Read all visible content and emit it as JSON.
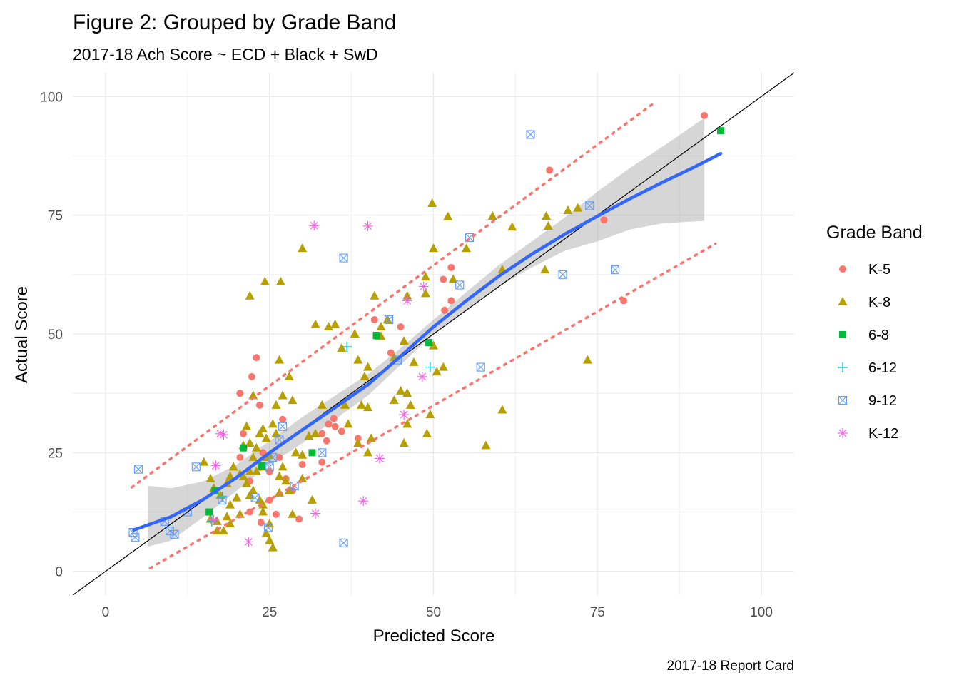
{
  "chart_data": {
    "type": "scatter",
    "title": "Figure 2: Grouped by Grade Band",
    "subtitle": "2017-18 Ach Score ~ ECD + Black + SwD",
    "xlabel": "Predicted Score",
    "ylabel": "Actual Score",
    "caption": "2017-18 Report Card",
    "xlim": [
      -5,
      105
    ],
    "ylim": [
      -5,
      105
    ],
    "x_ticks": [
      "0",
      "25",
      "50",
      "75",
      "100"
    ],
    "y_ticks": [
      "0",
      "25",
      "50",
      "75",
      "100"
    ],
    "grid": true,
    "legend": {
      "title": "Grade Band",
      "placement": "right",
      "entries": [
        {
          "label": "K-5",
          "color": "#F8766D",
          "shape": "circle"
        },
        {
          "label": "K-8",
          "color": "#B79F00",
          "shape": "triangle"
        },
        {
          "label": "6-8",
          "color": "#00BA38",
          "shape": "square"
        },
        {
          "label": "6-12",
          "color": "#00BFC4",
          "shape": "plus"
        },
        {
          "label": "9-12",
          "color": "#619CFF",
          "shape": "square-cross"
        },
        {
          "label": "K-12",
          "color": "#F564E3",
          "shape": "asterisk"
        }
      ]
    },
    "series": [
      {
        "name": "K-5",
        "points": [
          [
            91.3,
            96
          ],
          [
            67.7,
            84.5
          ],
          [
            76,
            74
          ],
          [
            79,
            57
          ],
          [
            51.5,
            61.5
          ],
          [
            52.7,
            64
          ],
          [
            52.7,
            57
          ],
          [
            51.7,
            55
          ],
          [
            41,
            53
          ],
          [
            45,
            51.5
          ],
          [
            41.3,
            49.5
          ],
          [
            20.5,
            37.5
          ],
          [
            22.3,
            41
          ],
          [
            23,
            45
          ],
          [
            23.5,
            35
          ],
          [
            27,
            32
          ],
          [
            34,
            31
          ],
          [
            35,
            30.5
          ],
          [
            36,
            29.5
          ],
          [
            21,
            29
          ],
          [
            33,
            29
          ],
          [
            20.5,
            24
          ],
          [
            24,
            25
          ],
          [
            30,
            22.5
          ],
          [
            33,
            23
          ],
          [
            25,
            21
          ],
          [
            27.5,
            19.5
          ],
          [
            22,
            19
          ],
          [
            28.5,
            17
          ],
          [
            25,
            15
          ],
          [
            22,
            12.5
          ],
          [
            26,
            12
          ],
          [
            23.7,
            10.3
          ],
          [
            29.5,
            11
          ],
          [
            33.7,
            27.5
          ],
          [
            38.5,
            28
          ],
          [
            34.8,
            32.2
          ],
          [
            26.5,
            24
          ],
          [
            43.5,
            46
          ]
        ]
      },
      {
        "name": "K-8",
        "points": [
          [
            49.8,
            77.5
          ],
          [
            52.2,
            74.7
          ],
          [
            59,
            74.8
          ],
          [
            62,
            72.5
          ],
          [
            67.2,
            74.8
          ],
          [
            67.5,
            72.7
          ],
          [
            70.5,
            76
          ],
          [
            72,
            76.5
          ],
          [
            67,
            63.5
          ],
          [
            60.5,
            63.5
          ],
          [
            55,
            68
          ],
          [
            50,
            68
          ],
          [
            48.8,
            62
          ],
          [
            53,
            61.5
          ],
          [
            30,
            68
          ],
          [
            24.3,
            61
          ],
          [
            26.7,
            61
          ],
          [
            22,
            58
          ],
          [
            46,
            58
          ],
          [
            48.8,
            58.5
          ],
          [
            41,
            58
          ],
          [
            32,
            52
          ],
          [
            34,
            51.5
          ],
          [
            35,
            52
          ],
          [
            43,
            53
          ],
          [
            42,
            51.5
          ],
          [
            38,
            50
          ],
          [
            45.5,
            48.5
          ],
          [
            50,
            47.5
          ],
          [
            47,
            44
          ],
          [
            51.5,
            43
          ],
          [
            50.5,
            42
          ],
          [
            42,
            49.5
          ],
          [
            38.5,
            44.5
          ],
          [
            44,
            45
          ],
          [
            36,
            47
          ],
          [
            40,
            43
          ],
          [
            39.5,
            41
          ],
          [
            45,
            38
          ],
          [
            46,
            37.5
          ],
          [
            44,
            36
          ],
          [
            46.5,
            35
          ],
          [
            36.5,
            35
          ],
          [
            39,
            35
          ],
          [
            40,
            34.5
          ],
          [
            46,
            31
          ],
          [
            60.5,
            34
          ],
          [
            73.5,
            44.5
          ],
          [
            58,
            26.5
          ],
          [
            49,
            29
          ],
          [
            49.5,
            33
          ],
          [
            45.5,
            27
          ],
          [
            40,
            25
          ],
          [
            40.5,
            28
          ],
          [
            38.5,
            27
          ],
          [
            37,
            31
          ],
          [
            33,
            35
          ],
          [
            32,
            29
          ],
          [
            31,
            28.5
          ],
          [
            30,
            24.5
          ],
          [
            29,
            25
          ],
          [
            26.5,
            44.5
          ],
          [
            28,
            41
          ],
          [
            27,
            37
          ],
          [
            26,
            35
          ],
          [
            22.5,
            37
          ],
          [
            28.5,
            36
          ],
          [
            24,
            30
          ],
          [
            24.5,
            28
          ],
          [
            25.5,
            31
          ],
          [
            23,
            26
          ],
          [
            22.5,
            24
          ],
          [
            24.5,
            24
          ],
          [
            25,
            24.5
          ],
          [
            24,
            22
          ],
          [
            23,
            21
          ],
          [
            22,
            21
          ],
          [
            21,
            20
          ],
          [
            21.5,
            18.5
          ],
          [
            22,
            16
          ],
          [
            22.5,
            17
          ],
          [
            23.5,
            15
          ],
          [
            24,
            14
          ],
          [
            24,
            12.5
          ],
          [
            25,
            10
          ],
          [
            24.5,
            8
          ],
          [
            25,
            6.5
          ],
          [
            25.5,
            5
          ],
          [
            26.5,
            16.5
          ],
          [
            26.5,
            20
          ],
          [
            27,
            22
          ],
          [
            27.5,
            19
          ],
          [
            28.5,
            12
          ],
          [
            28,
            17
          ],
          [
            20,
            15.5
          ],
          [
            20.5,
            12
          ],
          [
            19,
            14
          ],
          [
            18.5,
            11.5
          ],
          [
            19,
            10
          ],
          [
            18,
            8.5
          ],
          [
            17,
            8.5
          ],
          [
            17.5,
            16
          ],
          [
            16,
            11
          ],
          [
            18.5,
            18.5
          ],
          [
            19,
            20
          ],
          [
            19.5,
            22
          ],
          [
            20.5,
            20.5
          ],
          [
            21,
            26.5
          ],
          [
            22,
            27
          ],
          [
            23.5,
            29
          ],
          [
            26,
            29
          ],
          [
            21.5,
            30.5
          ],
          [
            16.5,
            17.5
          ],
          [
            16,
            19.5
          ],
          [
            17,
            10.5
          ],
          [
            15,
            23
          ],
          [
            30,
            19.5
          ],
          [
            31.5,
            15
          ]
        ]
      },
      {
        "name": "6-8",
        "points": [
          [
            93.8,
            92.8
          ],
          [
            41.3,
            49.7
          ],
          [
            49.3,
            48.2
          ],
          [
            21,
            26
          ],
          [
            31.5,
            25
          ],
          [
            23.8,
            22.2
          ],
          [
            16.7,
            17
          ],
          [
            15.8,
            12.5
          ]
        ]
      },
      {
        "name": "6-12",
        "points": [
          [
            36.8,
            47.3
          ],
          [
            49.5,
            43
          ],
          [
            17.8,
            15.7
          ],
          [
            16.2,
            10.5
          ]
        ]
      },
      {
        "name": "9-12",
        "points": [
          [
            64.8,
            92
          ],
          [
            73.8,
            77
          ],
          [
            77.7,
            63.5
          ],
          [
            69.7,
            62.5
          ],
          [
            55.5,
            70.3
          ],
          [
            36.3,
            66
          ],
          [
            54,
            60.3
          ],
          [
            57.2,
            43
          ],
          [
            43.2,
            53
          ],
          [
            44.5,
            44.5
          ],
          [
            27,
            30.5
          ],
          [
            33,
            25
          ],
          [
            26.5,
            27.7
          ],
          [
            25.5,
            24
          ],
          [
            25,
            22
          ],
          [
            13.8,
            22
          ],
          [
            5,
            21.5
          ],
          [
            28.8,
            18
          ],
          [
            17.8,
            15
          ],
          [
            22.8,
            15.5
          ],
          [
            12.5,
            12.5
          ],
          [
            9,
            10.5
          ],
          [
            9.8,
            8.5
          ],
          [
            10.5,
            7.8
          ],
          [
            4.2,
            8.2
          ],
          [
            4.5,
            7.2
          ],
          [
            24.8,
            9.2
          ],
          [
            36.3,
            6
          ]
        ]
      },
      {
        "name": "K-12",
        "points": [
          [
            31.8,
            72.8
          ],
          [
            40,
            72.7
          ],
          [
            48.5,
            60
          ],
          [
            46,
            57
          ],
          [
            48.3,
            41
          ],
          [
            45.5,
            33
          ],
          [
            41.8,
            23.8
          ],
          [
            39.3,
            14.8
          ],
          [
            32,
            12.2
          ],
          [
            21.8,
            6.2
          ],
          [
            17.5,
            29
          ],
          [
            18,
            28.8
          ],
          [
            16.8,
            22.3
          ],
          [
            16.5,
            10.8
          ]
        ]
      }
    ],
    "lines": [
      {
        "kind": "identity",
        "color": "#000000",
        "points": [
          [
            -5,
            -5
          ],
          [
            105,
            105
          ]
        ]
      },
      {
        "kind": "smooth",
        "color": "#3366FF",
        "points": [
          [
            4.3,
            8.7
          ],
          [
            10,
            11.5
          ],
          [
            15,
            15.2
          ],
          [
            20,
            19.8
          ],
          [
            25,
            25
          ],
          [
            30,
            29.8
          ],
          [
            35,
            34.5
          ],
          [
            40,
            39.3
          ],
          [
            45,
            45.3
          ],
          [
            50,
            51.5
          ],
          [
            55,
            57
          ],
          [
            60,
            62.2
          ],
          [
            65,
            66.8
          ],
          [
            70,
            71
          ],
          [
            75,
            74.8
          ],
          [
            80,
            78.5
          ],
          [
            85,
            82
          ],
          [
            90,
            85.3
          ],
          [
            93.8,
            88
          ]
        ]
      },
      {
        "kind": "prediction-upper",
        "color": "#F8766D",
        "points": [
          [
            4,
            17.7
          ],
          [
            84,
            99
          ]
        ]
      },
      {
        "kind": "prediction-lower",
        "color": "#F8766D",
        "points": [
          [
            6.8,
            0.7
          ],
          [
            93,
            69
          ]
        ]
      }
    ],
    "confidence_band": {
      "color": "#999999",
      "x": [
        6.5,
        10,
        15,
        20,
        25,
        30,
        35,
        40,
        45,
        50,
        55,
        60,
        65,
        70,
        75,
        80,
        85,
        91.3
      ],
      "upper": [
        18,
        17.5,
        19,
        22.5,
        27.5,
        32.5,
        37,
        41.5,
        47,
        53,
        58.8,
        64.5,
        69.5,
        74.5,
        80,
        85,
        89.5,
        95.5
      ],
      "lower": [
        5.2,
        6.5,
        11.5,
        17,
        22.5,
        27,
        32,
        37,
        43.5,
        50,
        55,
        60,
        64,
        67.5,
        69.5,
        72,
        73.3,
        73.8
      ]
    }
  }
}
